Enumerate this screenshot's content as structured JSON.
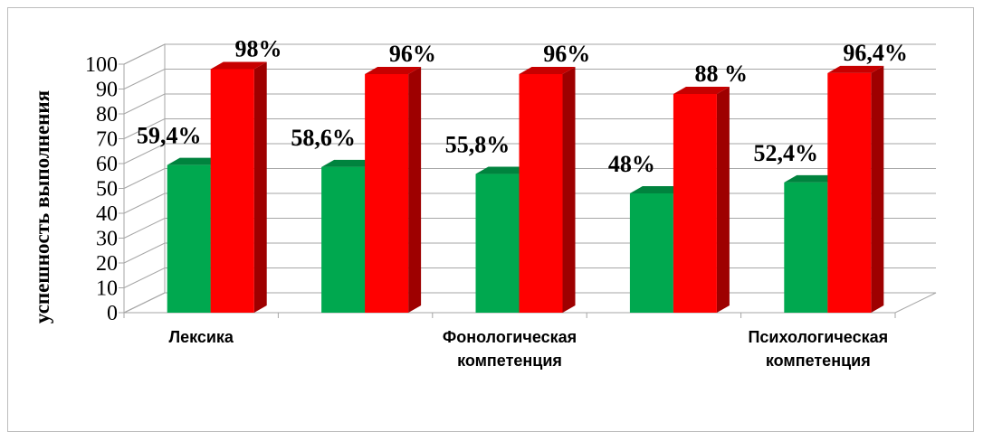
{
  "chart_data": {
    "type": "bar",
    "style": "3d-clustered-column",
    "ylabel": "успешность выполнения",
    "ylim": [
      0,
      100
    ],
    "yticks": [
      "0",
      "10",
      "20",
      "30",
      "40",
      "50",
      "60",
      "70",
      "80",
      "90",
      "100"
    ],
    "categories": [
      "Лексика",
      "",
      "Фонологическая компетенция",
      "",
      "Психологическая компетенция"
    ],
    "category_labels_shown": [
      [
        "Лексика"
      ],
      [],
      [
        "Фонологическая",
        "компетенция"
      ],
      [],
      [
        "Психологическая",
        "компетенция"
      ]
    ],
    "series": [
      {
        "color": "#00a84f",
        "values": [
          59.4,
          58.6,
          55.8,
          48,
          52.4
        ],
        "labels": [
          "59,4%",
          "58,6%",
          "55,8%",
          "48%",
          "52,4%"
        ]
      },
      {
        "color": "#ff0000",
        "values": [
          98,
          96,
          96,
          88,
          96.4
        ],
        "labels": [
          "98%",
          "96%",
          "96%",
          "88 %",
          "96,4%"
        ]
      }
    ],
    "grid": true,
    "legend": "none"
  }
}
